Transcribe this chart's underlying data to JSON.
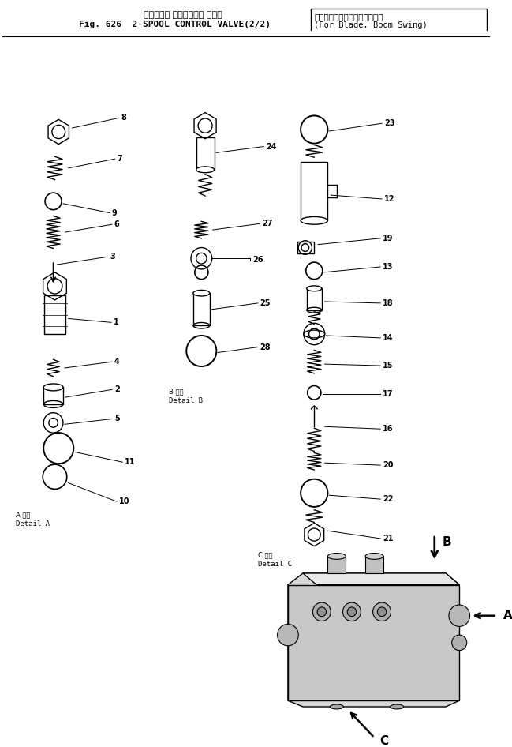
{
  "title_jp": "２スプール コントロール バルブ",
  "title_en": "Fig. 626  2-SPOOL CONTROL VALVE(2/2)",
  "subtitle_jp": "（ブレード，ブームスイング用",
  "subtitle_en": "(For Blade, Boom Swing)",
  "bg_color": "#ffffff",
  "line_color": "#000000",
  "fig_width": 6.49,
  "fig_height": 9.46,
  "dpi": 100
}
